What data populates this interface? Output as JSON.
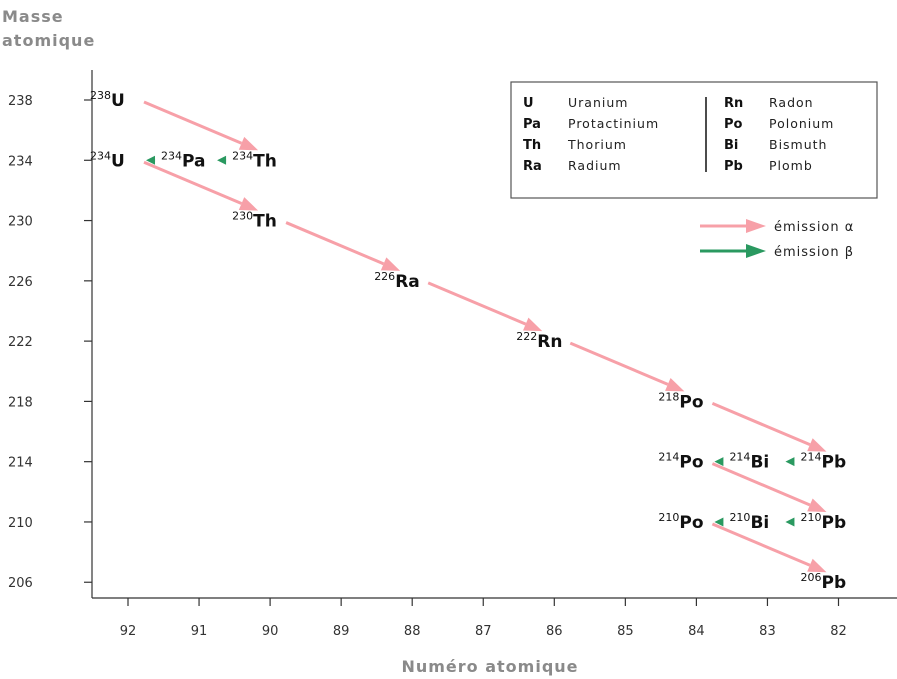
{
  "chart_data": {
    "type": "diagram",
    "ylabel_line1": "Masse",
    "ylabel_line2": "atomique",
    "xlabel": "Numéro atomique",
    "x_ticks": [
      92,
      91,
      90,
      89,
      88,
      87,
      86,
      85,
      84,
      83,
      82
    ],
    "y_ticks": [
      238,
      234,
      230,
      226,
      222,
      218,
      214,
      210,
      206
    ],
    "nuclides": [
      {
        "id": "U238",
        "mass": "238",
        "symbol": "U",
        "z": 92,
        "a": 238
      },
      {
        "id": "Th234",
        "mass": "234",
        "symbol": "Th",
        "z": 90,
        "a": 234
      },
      {
        "id": "Pa234",
        "mass": "234",
        "symbol": "Pa",
        "z": 91,
        "a": 234
      },
      {
        "id": "U234",
        "mass": "234",
        "symbol": "U",
        "z": 92,
        "a": 234
      },
      {
        "id": "Th230",
        "mass": "230",
        "symbol": "Th",
        "z": 90,
        "a": 230
      },
      {
        "id": "Ra226",
        "mass": "226",
        "symbol": "Ra",
        "z": 88,
        "a": 226
      },
      {
        "id": "Rn222",
        "mass": "222",
        "symbol": "Rn",
        "z": 86,
        "a": 222
      },
      {
        "id": "Po218",
        "mass": "218",
        "symbol": "Po",
        "z": 84,
        "a": 218
      },
      {
        "id": "Pb214",
        "mass": "214",
        "symbol": "Pb",
        "z": 82,
        "a": 214
      },
      {
        "id": "Bi214",
        "mass": "214",
        "symbol": "Bi",
        "z": 83,
        "a": 214
      },
      {
        "id": "Po214",
        "mass": "214",
        "symbol": "Po",
        "z": 84,
        "a": 214
      },
      {
        "id": "Pb210",
        "mass": "210",
        "symbol": "Pb",
        "z": 82,
        "a": 210
      },
      {
        "id": "Bi210",
        "mass": "210",
        "symbol": "Bi",
        "z": 83,
        "a": 210
      },
      {
        "id": "Po210",
        "mass": "210",
        "symbol": "Po",
        "z": 84,
        "a": 210
      },
      {
        "id": "Pb206",
        "mass": "206",
        "symbol": "Pb",
        "z": 82,
        "a": 206
      }
    ],
    "decays": [
      {
        "from": "U238",
        "to": "Th234",
        "type": "alpha"
      },
      {
        "from": "Th234",
        "to": "Pa234",
        "type": "beta"
      },
      {
        "from": "Pa234",
        "to": "U234",
        "type": "beta"
      },
      {
        "from": "U234",
        "to": "Th230",
        "type": "alpha"
      },
      {
        "from": "Th230",
        "to": "Ra226",
        "type": "alpha"
      },
      {
        "from": "Ra226",
        "to": "Rn222",
        "type": "alpha"
      },
      {
        "from": "Rn222",
        "to": "Po218",
        "type": "alpha"
      },
      {
        "from": "Po218",
        "to": "Pb214",
        "type": "alpha"
      },
      {
        "from": "Pb214",
        "to": "Bi214",
        "type": "beta"
      },
      {
        "from": "Bi214",
        "to": "Po214",
        "type": "beta"
      },
      {
        "from": "Po214",
        "to": "Pb210",
        "type": "alpha"
      },
      {
        "from": "Pb210",
        "to": "Bi210",
        "type": "beta"
      },
      {
        "from": "Bi210",
        "to": "Po210",
        "type": "beta"
      },
      {
        "from": "Po210",
        "to": "Pb206",
        "type": "alpha"
      }
    ],
    "legend_elements": [
      {
        "symbol": "U",
        "name": "Uranium"
      },
      {
        "symbol": "Pa",
        "name": "Protactinium"
      },
      {
        "symbol": "Th",
        "name": "Thorium"
      },
      {
        "symbol": "Ra",
        "name": "Radium"
      },
      {
        "symbol": "Rn",
        "name": "Radon"
      },
      {
        "symbol": "Po",
        "name": "Polonium"
      },
      {
        "symbol": "Bi",
        "name": "Bismuth"
      },
      {
        "symbol": "Pb",
        "name": "Plomb"
      }
    ],
    "legend_emissions": [
      {
        "type": "alpha",
        "label": "émission α"
      },
      {
        "type": "beta",
        "label": "émission β"
      }
    ],
    "colors": {
      "alpha": "#f7a0a8",
      "beta": "#2a9960"
    }
  }
}
